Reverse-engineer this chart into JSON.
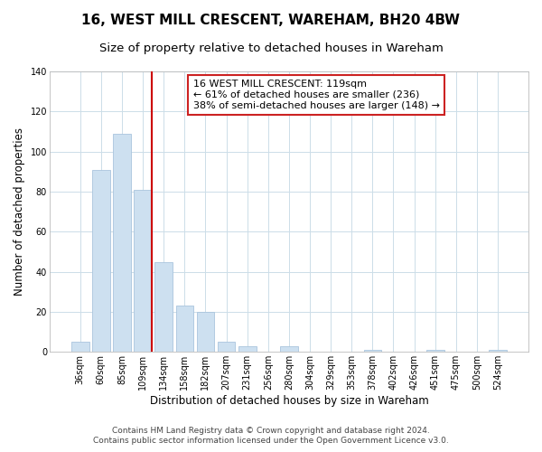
{
  "title": "16, WEST MILL CRESCENT, WAREHAM, BH20 4BW",
  "subtitle": "Size of property relative to detached houses in Wareham",
  "xlabel": "Distribution of detached houses by size in Wareham",
  "ylabel": "Number of detached properties",
  "bar_labels": [
    "36sqm",
    "60sqm",
    "85sqm",
    "109sqm",
    "134sqm",
    "158sqm",
    "182sqm",
    "207sqm",
    "231sqm",
    "256sqm",
    "280sqm",
    "304sqm",
    "329sqm",
    "353sqm",
    "378sqm",
    "402sqm",
    "426sqm",
    "451sqm",
    "475sqm",
    "500sqm",
    "524sqm"
  ],
  "bar_values": [
    5,
    91,
    109,
    81,
    45,
    23,
    20,
    5,
    3,
    0,
    3,
    0,
    0,
    0,
    1,
    0,
    0,
    1,
    0,
    0,
    1
  ],
  "bar_color": "#cde0f0",
  "bar_edge_color": "#aac4dd",
  "vline_bar_index": 3,
  "vline_color": "#cc0000",
  "ylim": [
    0,
    140
  ],
  "yticks": [
    0,
    20,
    40,
    60,
    80,
    100,
    120,
    140
  ],
  "annotation_text": "16 WEST MILL CRESCENT: 119sqm\n← 61% of detached houses are smaller (236)\n38% of semi-detached houses are larger (148) →",
  "annotation_box_color": "#ffffff",
  "annotation_box_edge": "#cc2222",
  "footer_line1": "Contains HM Land Registry data © Crown copyright and database right 2024.",
  "footer_line2": "Contains public sector information licensed under the Open Government Licence v3.0.",
  "background_color": "#ffffff",
  "grid_color": "#ccdde8",
  "title_fontsize": 11,
  "subtitle_fontsize": 9.5,
  "axis_label_fontsize": 8.5,
  "tick_fontsize": 7,
  "footer_fontsize": 6.5,
  "annotation_fontsize": 8
}
